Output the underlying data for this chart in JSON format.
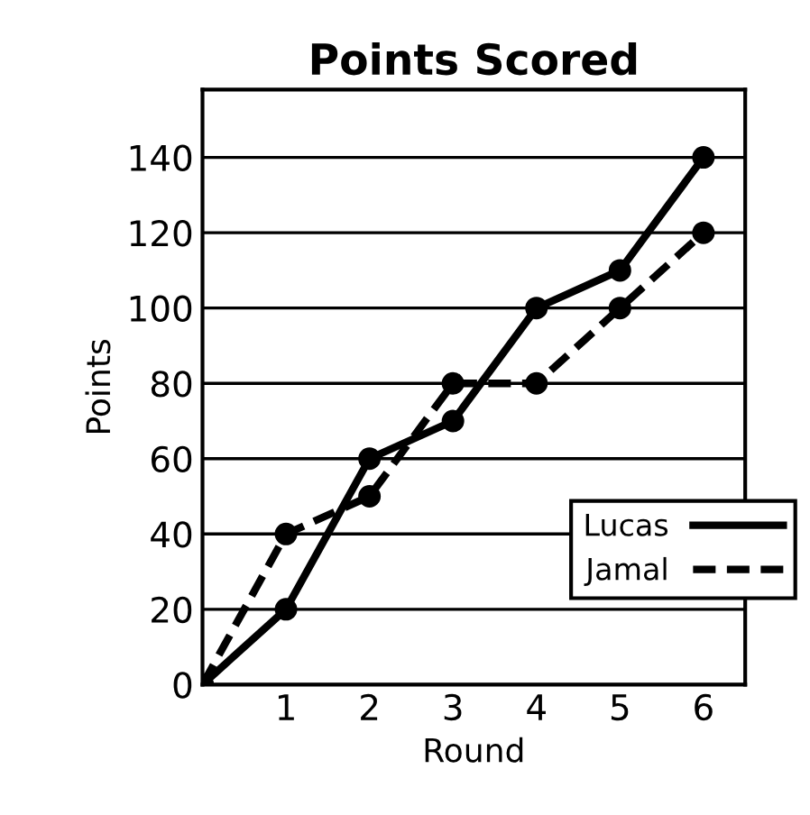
{
  "chart_data": {
    "type": "line",
    "title": "Points Scored",
    "xlabel": "Round",
    "ylabel": "Points",
    "x": [
      0,
      1,
      2,
      3,
      4,
      5,
      6
    ],
    "series": [
      {
        "name": "Lucas",
        "color": "#000000",
        "values": [
          0,
          20,
          60,
          70,
          100,
          110,
          140
        ],
        "line_style": "solid"
      },
      {
        "name": "Jamal",
        "color": "#000000",
        "values": [
          0,
          40,
          50,
          80,
          80,
          100,
          120
        ],
        "line_style": "dashed"
      }
    ],
    "xlim": [
      0,
      6.5
    ],
    "xticks": [
      1,
      2,
      3,
      4,
      5,
      6
    ],
    "ylim": [
      0,
      158
    ],
    "yticks": [
      0,
      20,
      40,
      60,
      80,
      100,
      120,
      140
    ],
    "grid": "y",
    "legend": "bottom right",
    "marker": "circle"
  }
}
